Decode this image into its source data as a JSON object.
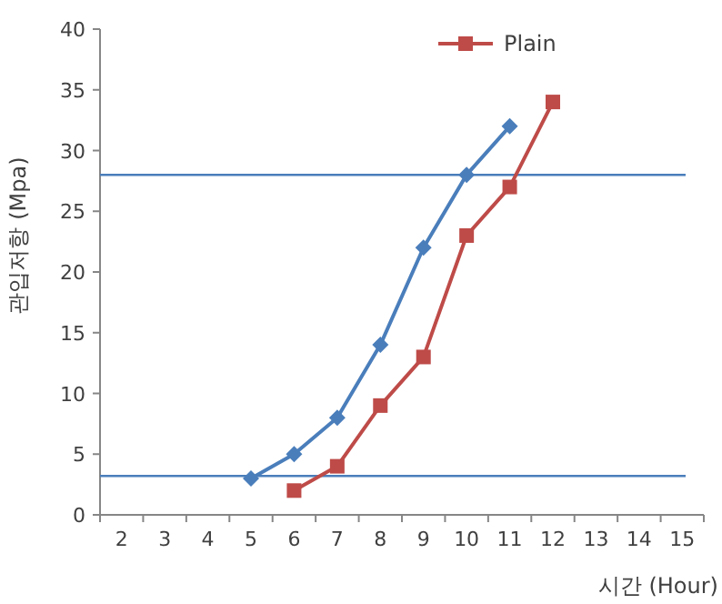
{
  "chart_data": {
    "type": "line",
    "xlabel": "시간 (Hour)",
    "ylabel": "관입저항 (Mpa)",
    "categories": [
      "2",
      "3",
      "4",
      "5",
      "6",
      "7",
      "8",
      "9",
      "10",
      "11",
      "12",
      "13",
      "14",
      "15"
    ],
    "series": [
      {
        "color": "#4a7ebb",
        "marker": "diamond",
        "values": [
          null,
          null,
          null,
          3,
          5,
          8,
          14,
          22,
          28,
          32,
          null,
          null,
          null,
          null
        ]
      },
      {
        "name": "Plain",
        "color": "#be4b48",
        "marker": "square",
        "values": [
          null,
          null,
          null,
          null,
          2,
          4,
          9,
          13,
          23,
          27,
          34,
          null,
          null,
          null
        ]
      }
    ],
    "ylim": [
      0,
      40
    ],
    "yticks": [
      0,
      5,
      10,
      15,
      20,
      25,
      30,
      35,
      40
    ],
    "ref_lines": [
      {
        "axis": "y",
        "value": 28,
        "color": "#4a7ebb"
      },
      {
        "axis": "y",
        "value": 3.2,
        "color": "#4a7ebb"
      }
    ],
    "grid": false,
    "legend": "top"
  }
}
